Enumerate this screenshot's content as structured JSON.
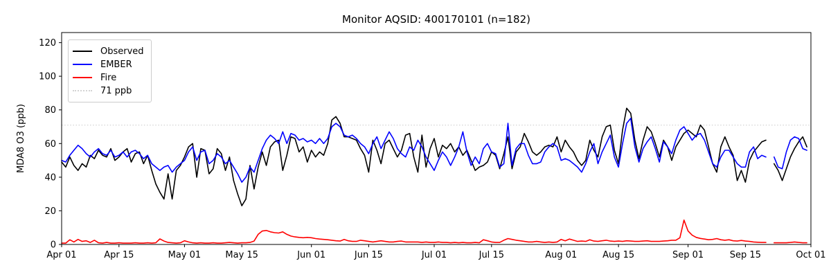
{
  "chart_data": {
    "type": "line",
    "title": "Monitor AQSID: 400170101 (n=182)",
    "xlabel": "",
    "ylabel": "MDA8 O3 (ppb)",
    "ylim": [
      0,
      126
    ],
    "yticks": [
      0,
      20,
      40,
      60,
      80,
      100,
      120
    ],
    "grid": false,
    "legend_position": "upper left",
    "x_unit": "days (daily values, Apr 01 through Sep 30; one missing day ~Sep 21)",
    "n_days": 183,
    "xticks": [
      {
        "day": 0,
        "label": "Apr 01"
      },
      {
        "day": 14,
        "label": "Apr 15"
      },
      {
        "day": 30,
        "label": "May 01"
      },
      {
        "day": 44,
        "label": "May 15"
      },
      {
        "day": 61,
        "label": "Jun 01"
      },
      {
        "day": 75,
        "label": "Jun 15"
      },
      {
        "day": 91,
        "label": "Jul 01"
      },
      {
        "day": 105,
        "label": "Jul 15"
      },
      {
        "day": 122,
        "label": "Aug 01"
      },
      {
        "day": 136,
        "label": "Aug 15"
      },
      {
        "day": 153,
        "label": "Sep 01"
      },
      {
        "day": 167,
        "label": "Sep 15"
      },
      {
        "day": 183,
        "label": "Oct 01"
      }
    ],
    "threshold": {
      "value": 71,
      "label": "71 ppb",
      "color": "#d3d3d3",
      "style": "dotted"
    },
    "series": [
      {
        "name": "Observed",
        "color": "#000000",
        "values": [
          49,
          46,
          52,
          47,
          44,
          48,
          46,
          53,
          51,
          56,
          53,
          52,
          57,
          50,
          52,
          55,
          57,
          49,
          54,
          55,
          48,
          53,
          44,
          36,
          31,
          27,
          42,
          27,
          44,
          47,
          52,
          58,
          60,
          40,
          57,
          56,
          42,
          45,
          57,
          54,
          44,
          52,
          38,
          30,
          23,
          27,
          47,
          33,
          46,
          55,
          47,
          58,
          61,
          62,
          44,
          53,
          64,
          63,
          55,
          58,
          49,
          56,
          52,
          55,
          53,
          60,
          74,
          76,
          72,
          64,
          64,
          63,
          62,
          57,
          53,
          43,
          62,
          56,
          48,
          60,
          62,
          57,
          52,
          56,
          65,
          66,
          52,
          43,
          65,
          46,
          57,
          63,
          52,
          59,
          57,
          60,
          55,
          58,
          53,
          56,
          50,
          44,
          46,
          47,
          49,
          55,
          53,
          45,
          54,
          64,
          45,
          55,
          58,
          66,
          61,
          55,
          53,
          55,
          58,
          59,
          58,
          64,
          55,
          62,
          58,
          55,
          50,
          47,
          50,
          62,
          56,
          52,
          64,
          70,
          71,
          56,
          48,
          68,
          81,
          78,
          62,
          51,
          62,
          70,
          67,
          60,
          52,
          62,
          58,
          50,
          58,
          62,
          66,
          68,
          66,
          64,
          71,
          68,
          58,
          48,
          43,
          58,
          64,
          58,
          53,
          38,
          44,
          37,
          50,
          55,
          58,
          61,
          62,
          null,
          48,
          44,
          38,
          45,
          52,
          57,
          61,
          64,
          58
        ]
      },
      {
        "name": "EMBER",
        "color": "#0000ff",
        "values": [
          50,
          49,
          53,
          56,
          59,
          57,
          54,
          52,
          55,
          57,
          54,
          53,
          56,
          52,
          53,
          55,
          52,
          55,
          56,
          54,
          51,
          53,
          48,
          46,
          44,
          46,
          47,
          43,
          46,
          48,
          50,
          55,
          58,
          50,
          55,
          56,
          48,
          50,
          54,
          52,
          48,
          50,
          46,
          42,
          37,
          40,
          46,
          43,
          50,
          57,
          62,
          65,
          63,
          60,
          67,
          60,
          66,
          65,
          62,
          63,
          61,
          62,
          60,
          63,
          60,
          63,
          70,
          72,
          70,
          65,
          64,
          65,
          63,
          60,
          58,
          54,
          60,
          64,
          57,
          62,
          67,
          63,
          57,
          54,
          52,
          58,
          56,
          62,
          58,
          52,
          48,
          44,
          50,
          55,
          52,
          47,
          52,
          58,
          67,
          55,
          47,
          52,
          48,
          57,
          60,
          55,
          54,
          46,
          48,
          72,
          47,
          57,
          60,
          60,
          53,
          48,
          48,
          49,
          55,
          58,
          60,
          58,
          50,
          51,
          50,
          48,
          46,
          43,
          48,
          55,
          60,
          48,
          55,
          60,
          65,
          52,
          46,
          60,
          72,
          75,
          58,
          49,
          57,
          61,
          64,
          57,
          49,
          61,
          58,
          54,
          62,
          68,
          70,
          66,
          62,
          65,
          66,
          62,
          55,
          48,
          46,
          52,
          56,
          56,
          52,
          48,
          46,
          46,
          55,
          58,
          51,
          53,
          52,
          null,
          52,
          46,
          45,
          55,
          62,
          64,
          63,
          57,
          56
        ]
      },
      {
        "name": "Fire",
        "color": "#ff0000",
        "values": [
          0.8,
          0.8,
          2.8,
          1.5,
          3,
          1.8,
          2.2,
          1.2,
          2.5,
          1,
          0.8,
          1.2,
          0.8,
          0.8,
          1,
          0.8,
          0.8,
          0.8,
          1,
          0.8,
          0.8,
          1,
          0.8,
          1,
          3.3,
          2,
          1.2,
          1,
          0.8,
          1,
          2.2,
          1.5,
          1,
          0.8,
          1,
          0.8,
          0.8,
          1,
          0.8,
          0.8,
          1,
          1.2,
          1,
          0.8,
          1,
          1,
          1.2,
          2,
          6,
          8,
          8.3,
          7.5,
          7,
          6.8,
          7.5,
          6,
          5,
          4.5,
          4.2,
          4,
          4.2,
          4,
          3.5,
          3.2,
          3,
          2.8,
          2.5,
          2.2,
          2,
          3,
          2.2,
          1.8,
          1.8,
          2.5,
          2.2,
          1.8,
          1.5,
          1.8,
          2.2,
          1.8,
          1.5,
          1.5,
          1.8,
          2,
          1.5,
          1.5,
          1.5,
          1.5,
          1.2,
          1.5,
          1.2,
          1.2,
          1.5,
          1.2,
          1.2,
          1,
          1.2,
          1,
          1.2,
          1,
          1,
          1.2,
          1,
          2.8,
          2.2,
          1.5,
          1.2,
          1.2,
          2.5,
          3.5,
          3,
          2.5,
          2.2,
          1.8,
          1.5,
          1.5,
          1.8,
          1.5,
          1.2,
          1.5,
          1.2,
          1.5,
          3,
          2.2,
          3.2,
          2.5,
          1.8,
          2,
          1.8,
          2.8,
          2,
          1.8,
          2.2,
          2.5,
          2,
          1.8,
          2,
          1.8,
          2.2,
          2,
          1.8,
          1.8,
          2,
          2.2,
          1.8,
          1.8,
          1.8,
          2,
          2.2,
          2.5,
          2.5,
          4,
          14.5,
          8,
          5.5,
          4.2,
          3.6,
          3.2,
          2.8,
          3,
          3.5,
          2.8,
          2.5,
          2.8,
          2.2,
          2,
          2.4,
          2,
          1.8,
          1.5,
          1.3,
          1.2,
          1.2,
          null,
          1,
          1,
          1,
          1,
          1.2,
          1.5,
          1.2,
          1,
          1
        ]
      }
    ]
  }
}
